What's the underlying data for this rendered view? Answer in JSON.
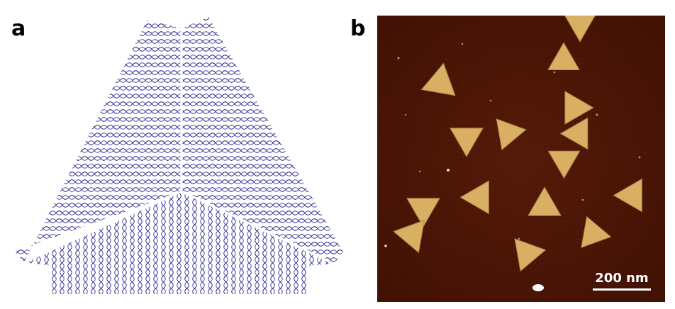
{
  "panels": {
    "a": {
      "label": "a"
    },
    "b": {
      "label": "b",
      "scale_bar": "200 nm"
    }
  },
  "colors": {
    "helix_strand": "#6b6bd6",
    "helix_dark": "#1a1a5e",
    "afm_background": "#4a1406",
    "afm_particle": "#d9b063"
  }
}
